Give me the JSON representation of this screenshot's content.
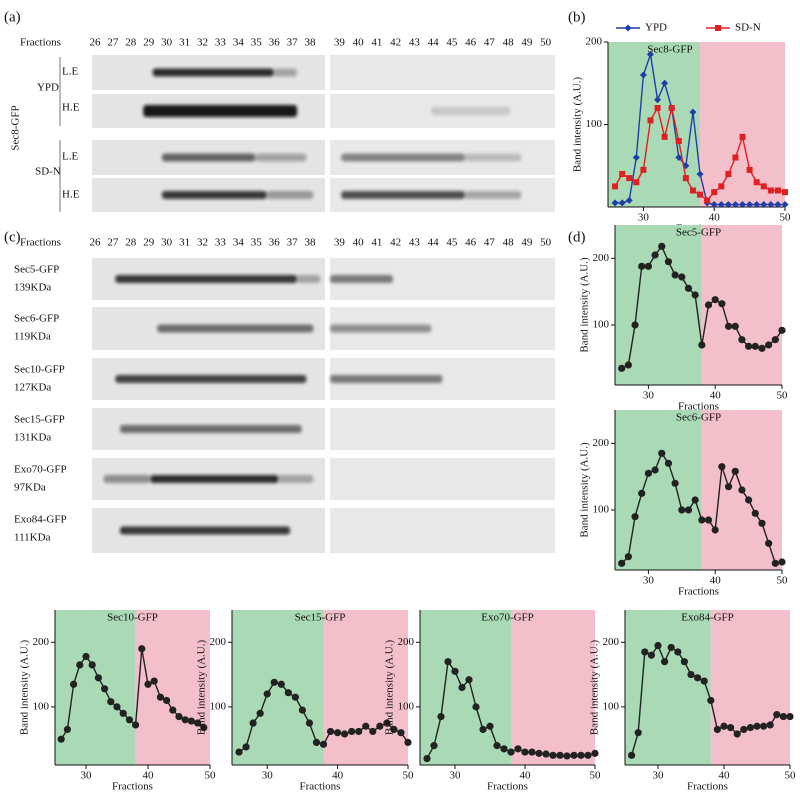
{
  "panel_labels": [
    "(a)",
    "(b)",
    "(c)",
    "(d)"
  ],
  "blot_a": {
    "fractions_label": "Fractions",
    "fractions": [
      26,
      27,
      28,
      29,
      30,
      31,
      32,
      33,
      34,
      35,
      36,
      37,
      38,
      39,
      40,
      41,
      42,
      43,
      44,
      45,
      46,
      47,
      48,
      49,
      50
    ],
    "strain": "Sec8-GFP",
    "groups": [
      "YPD",
      "SD-N"
    ],
    "exposures": [
      "L.E",
      "H.E",
      "L.E",
      "H.E"
    ]
  },
  "blot_c": {
    "fractions_label": "Fractions",
    "fractions": [
      26,
      27,
      28,
      29,
      30,
      31,
      32,
      33,
      34,
      35,
      36,
      37,
      38,
      39,
      40,
      41,
      42,
      43,
      44,
      45,
      46,
      47,
      48,
      49,
      50
    ],
    "lanes": [
      {
        "name": "Sec5-GFP",
        "size": "139KDa"
      },
      {
        "name": "Sec6-GFP",
        "size": "119KDa"
      },
      {
        "name": "Sec10-GFP",
        "size": "127KDa"
      },
      {
        "name": "Sec15-GFP",
        "size": "131KDa"
      },
      {
        "name": "Exo70-GFP",
        "size": "97KDa"
      },
      {
        "name": "Exo84-GFP",
        "size": "111KDa"
      }
    ]
  },
  "chart_data": [
    {
      "type": "line",
      "title": "Sec8-GFP",
      "xlabel": "Fractions",
      "ylabel": "Band intensity (A.U.)",
      "xlim": [
        25,
        50
      ],
      "ylim": [
        0,
        200
      ],
      "xticks": [
        30,
        40,
        50
      ],
      "yticks": [
        100,
        200
      ],
      "legend": "top",
      "regions": [
        {
          "from": 25,
          "to": 38,
          "color": "#a9d9b5"
        },
        {
          "from": 38,
          "to": 50,
          "color": "#f2bfca"
        }
      ],
      "x": [
        26,
        27,
        28,
        29,
        30,
        31,
        32,
        33,
        34,
        35,
        36,
        37,
        38,
        39,
        40,
        41,
        42,
        43,
        44,
        45,
        46,
        47,
        48,
        49,
        50
      ],
      "series": [
        {
          "name": "YPD",
          "color": "#1f3fa8",
          "marker": "diamond",
          "values": [
            5,
            5,
            8,
            60,
            160,
            185,
            130,
            150,
            120,
            60,
            50,
            115,
            40,
            5,
            3,
            3,
            3,
            3,
            3,
            3,
            3,
            3,
            3,
            3,
            3
          ]
        },
        {
          "name": "SD-N",
          "color": "#e02020",
          "marker": "square",
          "values": [
            25,
            40,
            35,
            30,
            45,
            105,
            120,
            85,
            120,
            80,
            35,
            20,
            15,
            8,
            18,
            25,
            40,
            60,
            85,
            45,
            30,
            25,
            20,
            20,
            18
          ]
        }
      ]
    },
    {
      "type": "line",
      "title": "Sec5-GFP",
      "xlabel": "Fractions",
      "ylabel": "Band intensity (A.U.)",
      "xlim": [
        25,
        50
      ],
      "ylim": [
        10,
        250
      ],
      "xticks": [
        30,
        40,
        50
      ],
      "yticks": [
        100,
        200
      ],
      "regions": [
        {
          "from": 25,
          "to": 38,
          "color": "#a9d9b5"
        },
        {
          "from": 38,
          "to": 50,
          "color": "#f2bfca"
        }
      ],
      "x": [
        26,
        27,
        28,
        29,
        30,
        31,
        32,
        33,
        34,
        35,
        36,
        37,
        38,
        39,
        40,
        41,
        42,
        43,
        44,
        45,
        46,
        47,
        48,
        49,
        50
      ],
      "series": [
        {
          "color": "#222",
          "marker": "circle",
          "values": [
            35,
            40,
            100,
            188,
            188,
            205,
            218,
            195,
            175,
            172,
            155,
            145,
            70,
            130,
            138,
            132,
            98,
            98,
            78,
            68,
            68,
            65,
            70,
            78,
            92
          ]
        }
      ]
    },
    {
      "type": "line",
      "title": "Sec6-GFP",
      "xlabel": "Fractions",
      "ylabel": "Band intensity (A.U.)",
      "xlim": [
        25,
        50
      ],
      "ylim": [
        10,
        250
      ],
      "xticks": [
        30,
        40,
        50
      ],
      "yticks": [
        100,
        200
      ],
      "regions": [
        {
          "from": 25,
          "to": 38,
          "color": "#a9d9b5"
        },
        {
          "from": 38,
          "to": 50,
          "color": "#f2bfca"
        }
      ],
      "x": [
        26,
        27,
        28,
        29,
        30,
        31,
        32,
        33,
        34,
        35,
        36,
        37,
        38,
        39,
        40,
        41,
        42,
        43,
        44,
        45,
        46,
        47,
        48,
        49,
        50
      ],
      "series": [
        {
          "color": "#222",
          "marker": "circle",
          "values": [
            20,
            30,
            90,
            125,
            155,
            160,
            185,
            170,
            140,
            100,
            100,
            115,
            85,
            85,
            70,
            165,
            135,
            158,
            130,
            115,
            95,
            80,
            50,
            20,
            22
          ]
        }
      ]
    },
    {
      "type": "line",
      "title": "Sec10-GFP",
      "xlabel": "Fractions",
      "ylabel": "Band intensity (A.U.)",
      "xlim": [
        25,
        50
      ],
      "ylim": [
        10,
        250
      ],
      "xticks": [
        30,
        40,
        50
      ],
      "yticks": [
        100,
        200
      ],
      "regions": [
        {
          "from": 25,
          "to": 38,
          "color": "#a9d9b5"
        },
        {
          "from": 38,
          "to": 50,
          "color": "#f2bfca"
        }
      ],
      "x": [
        26,
        27,
        28,
        29,
        30,
        31,
        32,
        33,
        34,
        35,
        36,
        37,
        38,
        39,
        40,
        41,
        42,
        43,
        44,
        45,
        46,
        47,
        48,
        49
      ],
      "series": [
        {
          "color": "#222",
          "marker": "circle",
          "values": [
            50,
            65,
            135,
            165,
            178,
            165,
            145,
            128,
            108,
            100,
            90,
            80,
            72,
            190,
            135,
            140,
            115,
            110,
            95,
            85,
            80,
            78,
            75,
            68
          ]
        }
      ]
    },
    {
      "type": "line",
      "title": "Sec15-GFP",
      "xlabel": "Fractions",
      "ylabel": "Band intensity (A.U.)",
      "xlim": [
        25,
        50
      ],
      "ylim": [
        10,
        250
      ],
      "xticks": [
        30,
        40,
        50
      ],
      "yticks": [
        100,
        200
      ],
      "regions": [
        {
          "from": 25,
          "to": 38,
          "color": "#a9d9b5"
        },
        {
          "from": 38,
          "to": 50,
          "color": "#f2bfca"
        }
      ],
      "x": [
        26,
        27,
        28,
        29,
        30,
        31,
        32,
        33,
        34,
        35,
        36,
        37,
        38,
        39,
        40,
        41,
        42,
        43,
        44,
        45,
        46,
        47,
        48,
        49,
        50
      ],
      "series": [
        {
          "color": "#222",
          "marker": "circle",
          "values": [
            30,
            38,
            75,
            90,
            120,
            138,
            135,
            122,
            115,
            95,
            75,
            45,
            42,
            62,
            60,
            58,
            62,
            62,
            70,
            62,
            70,
            75,
            65,
            60,
            45
          ]
        }
      ]
    },
    {
      "type": "line",
      "title": "Exo70-GFP",
      "xlabel": "Fractions",
      "ylabel": "Band intensity (A.U.)",
      "xlim": [
        25,
        50
      ],
      "ylim": [
        10,
        250
      ],
      "xticks": [
        30,
        40,
        50
      ],
      "yticks": [
        100,
        200
      ],
      "regions": [
        {
          "from": 25,
          "to": 38,
          "color": "#a9d9b5"
        },
        {
          "from": 38,
          "to": 50,
          "color": "#f2bfca"
        }
      ],
      "x": [
        26,
        27,
        28,
        29,
        30,
        31,
        32,
        33,
        34,
        35,
        36,
        37,
        38,
        39,
        40,
        41,
        42,
        43,
        44,
        45,
        46,
        47,
        48,
        49,
        50
      ],
      "series": [
        {
          "color": "#222",
          "marker": "circle",
          "values": [
            20,
            40,
            85,
            170,
            155,
            130,
            142,
            100,
            65,
            70,
            40,
            35,
            30,
            35,
            30,
            30,
            28,
            27,
            25,
            25,
            24,
            25,
            25,
            25,
            28
          ]
        }
      ]
    },
    {
      "type": "line",
      "title": "Exo84-GFP",
      "xlabel": "Fractions",
      "ylabel": "Band intensity (A.U.)",
      "xlim": [
        25,
        50
      ],
      "ylim": [
        10,
        250
      ],
      "xticks": [
        30,
        40,
        50
      ],
      "yticks": [
        100,
        200
      ],
      "regions": [
        {
          "from": 25,
          "to": 38,
          "color": "#a9d9b5"
        },
        {
          "from": 38,
          "to": 50,
          "color": "#f2bfca"
        }
      ],
      "x": [
        26,
        27,
        28,
        29,
        30,
        31,
        32,
        33,
        34,
        35,
        36,
        37,
        38,
        39,
        40,
        41,
        42,
        43,
        44,
        45,
        46,
        47,
        48,
        49,
        50
      ],
      "series": [
        {
          "color": "#222",
          "marker": "circle",
          "values": [
            25,
            60,
            185,
            180,
            195,
            170,
            192,
            185,
            170,
            150,
            145,
            140,
            110,
            65,
            70,
            68,
            58,
            65,
            68,
            70,
            70,
            72,
            88,
            85,
            85
          ]
        }
      ]
    }
  ]
}
